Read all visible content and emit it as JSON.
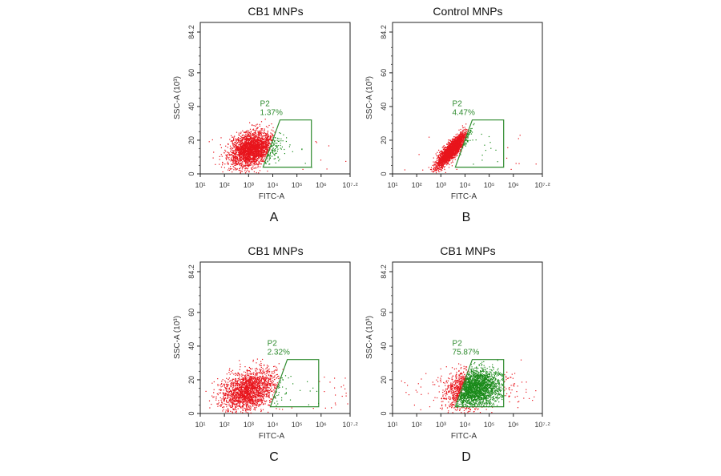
{
  "chart_data": [
    {
      "type": "scatter",
      "panel_letter": "A",
      "title": "CB1 MNPs",
      "xlabel": "FITC-A",
      "ylabel": "SSC-A (10³)",
      "x_scale": "log",
      "xlim_log10": [
        1,
        7.2
      ],
      "x_tick_labels": [
        "10¹",
        "10²",
        "10³",
        "10⁴",
        "10⁵",
        "10⁶",
        "10⁷·²"
      ],
      "ylim": [
        0,
        84.2
      ],
      "y_ticks": [
        0,
        20,
        40,
        60,
        84.2
      ],
      "gate": {
        "name": "P2",
        "percent": "1.37%",
        "polygon_log10x_y": [
          [
            3.6,
            4
          ],
          [
            4.3,
            32
          ],
          [
            5.6,
            32
          ],
          [
            5.6,
            4
          ]
        ]
      },
      "population": {
        "center_log10x": 3.1,
        "sd_log10x": 0.45,
        "center_y": 15,
        "sd_y": 5,
        "corr": 0.3,
        "count": 2600,
        "outliers": 40
      },
      "colors": {
        "ungated": "#e8141c",
        "gated": "#1a8a1a"
      }
    },
    {
      "type": "scatter",
      "panel_letter": "B",
      "title": "Control MNPs",
      "xlabel": "FITC-A",
      "ylabel": "SSC-A (10³)",
      "x_scale": "log",
      "xlim_log10": [
        1,
        7.2
      ],
      "x_tick_labels": [
        "10¹",
        "10²",
        "10³",
        "10⁴",
        "10⁵",
        "10⁶",
        "10⁷·²"
      ],
      "ylim": [
        0,
        84.2
      ],
      "y_ticks": [
        0,
        20,
        40,
        60,
        84.2
      ],
      "gate": {
        "name": "P2",
        "percent": "4.47%",
        "polygon_log10x_y": [
          [
            3.6,
            4
          ],
          [
            4.3,
            32
          ],
          [
            5.6,
            32
          ],
          [
            5.6,
            4
          ]
        ]
      },
      "population": {
        "center_log10x": 3.4,
        "sd_log10x": 0.3,
        "center_y": 14,
        "sd_y": 5,
        "corr": 0.85,
        "count": 2400,
        "outliers": 30
      },
      "colors": {
        "ungated": "#e8141c",
        "gated": "#1a8a1a"
      }
    },
    {
      "type": "scatter",
      "panel_letter": "C",
      "title": "CB1 MNPs",
      "xlabel": "FITC-A",
      "ylabel": "SSC-A (10³)",
      "x_scale": "log",
      "xlim_log10": [
        1,
        7.2
      ],
      "x_tick_labels": [
        "10¹",
        "10²",
        "10³",
        "10⁴",
        "10⁵",
        "10⁶",
        "10⁷·²"
      ],
      "ylim": [
        0,
        84.2
      ],
      "y_ticks": [
        0,
        20,
        40,
        60,
        84.2
      ],
      "gate": {
        "name": "P2",
        "percent": "2.32%",
        "polygon_log10x_y": [
          [
            3.9,
            4
          ],
          [
            4.6,
            32
          ],
          [
            5.9,
            32
          ],
          [
            5.9,
            4
          ]
        ]
      },
      "population": {
        "center_log10x": 3.0,
        "sd_log10x": 0.55,
        "center_y": 14,
        "sd_y": 6,
        "corr": 0.3,
        "count": 2000,
        "outliers": 60
      },
      "colors": {
        "ungated": "#e8141c",
        "gated": "#1a8a1a"
      }
    },
    {
      "type": "scatter",
      "panel_letter": "D",
      "title": "CB1 MNPs",
      "xlabel": "FITC-A",
      "ylabel": "SSC-A (10³)",
      "x_scale": "log",
      "xlim_log10": [
        1,
        7.2
      ],
      "x_tick_labels": [
        "10¹",
        "10²",
        "10³",
        "10⁴",
        "10⁵",
        "10⁶",
        "10⁷·²"
      ],
      "ylim": [
        0,
        84.2
      ],
      "y_ticks": [
        0,
        20,
        40,
        60,
        84.2
      ],
      "gate": {
        "name": "P2",
        "percent": "75.87%",
        "polygon_log10x_y": [
          [
            3.6,
            4
          ],
          [
            4.3,
            32
          ],
          [
            5.6,
            32
          ],
          [
            5.6,
            4
          ]
        ]
      },
      "population": {
        "center_log10x": 4.35,
        "sd_log10x": 0.55,
        "center_y": 15,
        "sd_y": 5.5,
        "corr": 0.2,
        "count": 2600,
        "outliers": 50
      },
      "colors": {
        "ungated": "#e8141c",
        "gated": "#1a8a1a"
      }
    }
  ]
}
